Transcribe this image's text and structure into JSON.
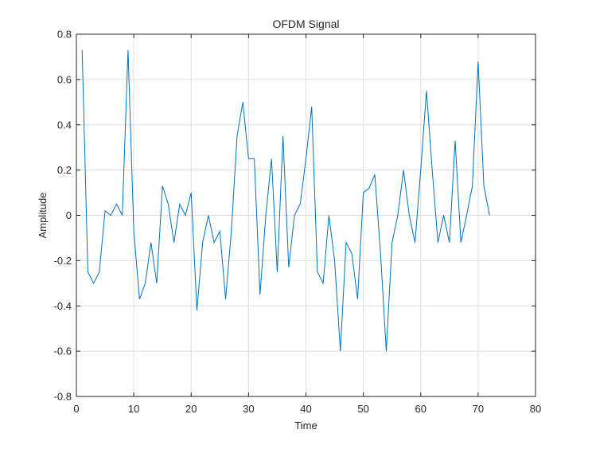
{
  "chart_data": {
    "type": "line",
    "title": "OFDM Signal",
    "xlabel": "Time",
    "ylabel": "Amplitude",
    "xlim": [
      0,
      80
    ],
    "ylim": [
      -0.8,
      0.8
    ],
    "xticks": [
      0,
      10,
      20,
      30,
      40,
      50,
      60,
      70,
      80
    ],
    "yticks": [
      -0.8,
      -0.6,
      -0.4,
      -0.2,
      0,
      0.2,
      0.4,
      0.6,
      0.8
    ],
    "xtick_labels": [
      "0",
      "10",
      "20",
      "30",
      "40",
      "50",
      "60",
      "70",
      "80"
    ],
    "ytick_labels": [
      "-0.8",
      "-0.6",
      "-0.4",
      "-0.2",
      "0",
      "0.2",
      "0.4",
      "0.6",
      "0.8"
    ],
    "grid": true,
    "series": [
      {
        "color": "#0072BD",
        "x": [
          1,
          2,
          3,
          4,
          5,
          6,
          7,
          8,
          9,
          10,
          11,
          12,
          13,
          14,
          15,
          16,
          17,
          18,
          19,
          20,
          21,
          22,
          23,
          24,
          25,
          26,
          27,
          28,
          29,
          30,
          31,
          32,
          33,
          34,
          35,
          36,
          37,
          38,
          39,
          40,
          41,
          42,
          43,
          44,
          45,
          46,
          47,
          48,
          49,
          50,
          51,
          52,
          53,
          54,
          55,
          56,
          57,
          58,
          59,
          60,
          61,
          62,
          63,
          64,
          65,
          66,
          67,
          68,
          69,
          70,
          71,
          72
        ],
        "y": [
          0.73,
          -0.25,
          -0.3,
          -0.25,
          0.02,
          0.0,
          0.05,
          0.0,
          0.73,
          -0.07,
          -0.37,
          -0.3,
          -0.12,
          -0.3,
          0.13,
          0.05,
          -0.12,
          0.05,
          0.0,
          0.1,
          -0.42,
          -0.12,
          0.0,
          -0.12,
          -0.07,
          -0.37,
          -0.07,
          0.35,
          0.5,
          0.25,
          0.25,
          -0.35,
          0.0,
          0.25,
          -0.25,
          0.35,
          -0.23,
          0.0,
          0.05,
          0.25,
          0.48,
          -0.25,
          -0.3,
          0.0,
          -0.2,
          -0.6,
          -0.12,
          -0.17,
          -0.37,
          0.1,
          0.12,
          0.18,
          -0.17,
          -0.6,
          -0.12,
          0.0,
          0.2,
          0.0,
          -0.12,
          0.2,
          0.55,
          0.2,
          -0.12,
          0.0,
          -0.12,
          0.33,
          -0.12,
          0.0,
          0.13,
          0.68,
          0.13,
          0.0
        ]
      }
    ]
  }
}
